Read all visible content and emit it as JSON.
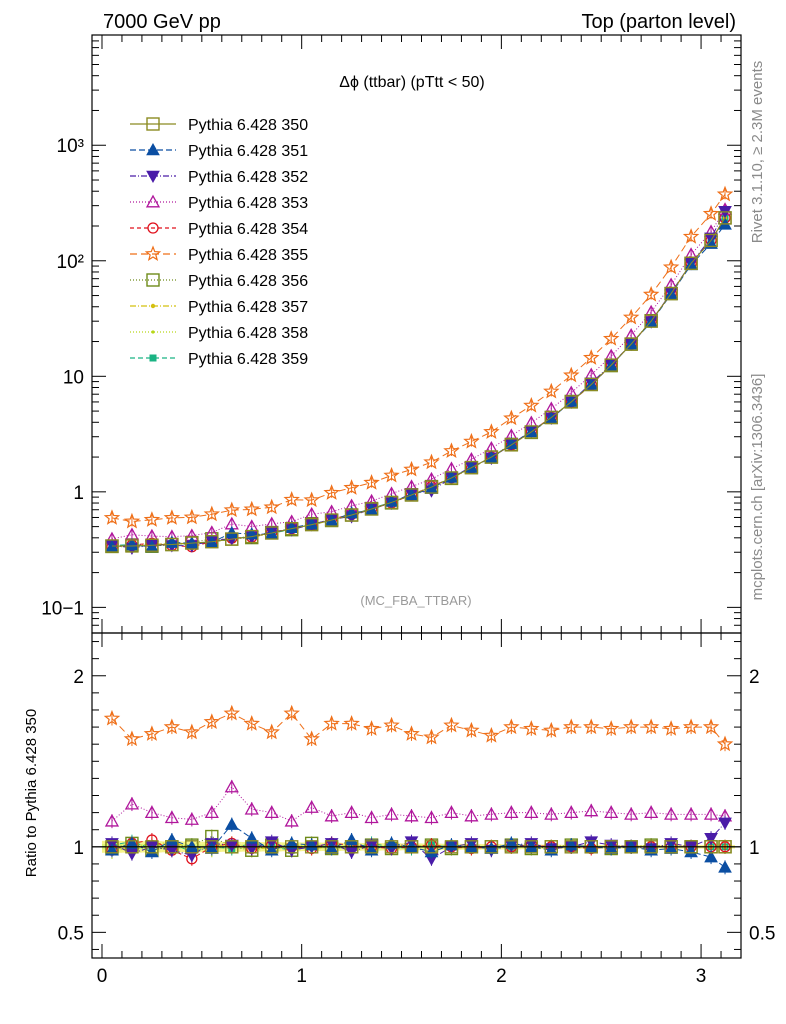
{
  "header": {
    "left": "7000 GeV pp",
    "right": "Top (parton level)"
  },
  "side_labels": {
    "rivet": "Rivet 3.1.10, ≥ 2.3M events",
    "mcplots": "mcplots.cern.ch [arXiv:1306.3436]"
  },
  "chart_data": {
    "type": "line",
    "title": "Δϕ (ttbar) (pTtt < 50)",
    "watermark": "(MC_FBA_TTBAR)",
    "main_panel": {
      "yscale": "log",
      "ylim": [
        0.06,
        9000
      ],
      "y_tick_labels": [
        "10−1",
        "1",
        "10",
        "10²",
        "10³"
      ]
    },
    "ratio_panel": {
      "ylabel": "Ratio to Pythia 6.428 350",
      "ylim": [
        0.35,
        2.25
      ],
      "y_tick_labels": [
        "0.5",
        "1",
        "2"
      ]
    },
    "xlim": [
      -0.05,
      3.2
    ],
    "x_tick_labels": [
      "0",
      "1",
      "2",
      "3"
    ],
    "x": [
      0.05,
      0.15,
      0.25,
      0.35,
      0.45,
      0.55,
      0.65,
      0.75,
      0.85,
      0.95,
      1.05,
      1.15,
      1.25,
      1.35,
      1.45,
      1.55,
      1.65,
      1.75,
      1.85,
      1.95,
      2.05,
      2.15,
      2.25,
      2.35,
      2.45,
      2.55,
      2.65,
      2.75,
      2.85,
      2.95,
      3.05,
      3.12
    ],
    "reference": [
      0.34,
      0.34,
      0.345,
      0.35,
      0.36,
      0.37,
      0.39,
      0.41,
      0.44,
      0.48,
      0.52,
      0.57,
      0.63,
      0.71,
      0.81,
      0.94,
      1.1,
      1.32,
      1.62,
      2.0,
      2.55,
      3.3,
      4.4,
      6.0,
      8.5,
      12.5,
      19,
      30,
      52,
      95,
      150,
      235
    ],
    "series": [
      {
        "name": "Pythia 6.428 350",
        "color": "#8b8b22",
        "marker": "square-open",
        "dash": "solid",
        "ratio": [
          1,
          1,
          1,
          1,
          1,
          1,
          1,
          1,
          1,
          1,
          1,
          1,
          1,
          1,
          1,
          1,
          1,
          1,
          1,
          1,
          1,
          1,
          1,
          1,
          1,
          1,
          1,
          1,
          1,
          1,
          1,
          1
        ]
      },
      {
        "name": "Pythia 6.428 351",
        "color": "#0b4ea2",
        "marker": "triangle-up",
        "dash": "6,3",
        "ratio": [
          0.98,
          1.02,
          0.97,
          1.04,
          1.0,
          0.99,
          1.13,
          1.05,
          0.98,
          1.02,
          1.01,
          0.99,
          1.04,
          0.98,
          1.02,
          1.0,
          0.97,
          1.01,
          1.0,
          0.99,
          1.02,
          1.0,
          0.98,
          1.01,
          1.0,
          0.99,
          1.0,
          0.98,
          0.99,
          0.97,
          0.94,
          0.88
        ]
      },
      {
        "name": "Pythia 6.428 352",
        "color": "#4a1ca8",
        "marker": "triangle-down",
        "dash": "6,2,1,2",
        "ratio": [
          1.02,
          0.96,
          1.0,
          0.98,
          0.95,
          1.02,
          1.01,
          0.99,
          1.03,
          0.98,
          1.0,
          1.02,
          0.97,
          1.01,
          0.99,
          1.03,
          0.93,
          1.0,
          1.02,
          0.98,
          1.01,
          1.02,
          0.99,
          1.0,
          1.03,
          1.01,
          1.0,
          0.99,
          1.02,
          1.0,
          1.05,
          1.14
        ]
      },
      {
        "name": "Pythia 6.428 353",
        "color": "#b0179c",
        "marker": "triangle-up-open",
        "dash": "1,2",
        "ratio": [
          1.15,
          1.25,
          1.2,
          1.17,
          1.16,
          1.2,
          1.35,
          1.22,
          1.2,
          1.15,
          1.23,
          1.18,
          1.2,
          1.17,
          1.19,
          1.18,
          1.17,
          1.2,
          1.18,
          1.19,
          1.2,
          1.2,
          1.19,
          1.2,
          1.21,
          1.2,
          1.19,
          1.2,
          1.19,
          1.19,
          1.19,
          1.18
        ]
      },
      {
        "name": "Pythia 6.428 354",
        "color": "#e0101c",
        "marker": "circle-open",
        "dash": "4,3",
        "ratio": [
          0.98,
          1.02,
          1.04,
          0.98,
          0.93,
          1.0,
          1.02,
          0.99,
          1.01,
          1.0,
          0.99,
          1.02,
          1.01,
          1.0,
          0.99,
          1.0,
          1.01,
          1.0,
          0.99,
          1.0,
          1.0,
          1.01,
          1.0,
          1.0,
          0.99,
          1.0,
          1.0,
          1.0,
          1.0,
          1.0,
          1.0,
          1.0
        ]
      },
      {
        "name": "Pythia 6.428 355",
        "color": "#ef6f18",
        "marker": "star-open",
        "dash": "7,4",
        "ratio": [
          1.75,
          1.63,
          1.66,
          1.7,
          1.67,
          1.73,
          1.78,
          1.72,
          1.67,
          1.78,
          1.63,
          1.72,
          1.72,
          1.69,
          1.71,
          1.66,
          1.64,
          1.71,
          1.68,
          1.65,
          1.7,
          1.69,
          1.68,
          1.7,
          1.7,
          1.69,
          1.7,
          1.7,
          1.69,
          1.7,
          1.7,
          1.6
        ]
      },
      {
        "name": "Pythia 6.428 356",
        "color": "#6e8b1a",
        "marker": "square-open",
        "dash": "1,2",
        "ratio": [
          0.99,
          1.02,
          0.98,
          1.0,
          1.01,
          1.06,
          1.0,
          0.98,
          1.01,
          0.98,
          1.02,
          0.99,
          1.0,
          1.01,
          0.99,
          1.0,
          1.01,
          0.99,
          1.0,
          1.0,
          1.01,
          0.99,
          1.0,
          1.01,
          1.0,
          0.99,
          1.0,
          1.01,
          1.0,
          1.0,
          1.0,
          1.0
        ]
      },
      {
        "name": "Pythia 6.428 357",
        "color": "#d4c00f",
        "marker": "dot-small",
        "dash": "6,2,1,2",
        "ratio": [
          1.0,
          0.98,
          1.01,
          1.03,
          0.99,
          1.0,
          1.02,
          0.98,
          1.0,
          1.01,
          0.99,
          1.0,
          1.0,
          0.99,
          1.01,
          1.0,
          1.0,
          0.99,
          1.0,
          1.0,
          1.0,
          1.0,
          1.0,
          1.0,
          1.0,
          1.0,
          1.0,
          1.0,
          1.0,
          1.0,
          1.0,
          1.0
        ]
      },
      {
        "name": "Pythia 6.428 358",
        "color": "#b7d618",
        "marker": "dot-tiny",
        "dash": "1,2",
        "ratio": [
          0.97,
          1.0,
          1.02,
          0.99,
          1.0,
          0.98,
          1.01,
          1.0,
          0.99,
          1.0,
          1.01,
          1.0,
          0.99,
          1.0,
          1.0,
          1.01,
          1.0,
          1.0,
          0.99,
          1.0,
          1.0,
          1.0,
          1.0,
          1.0,
          1.0,
          1.0,
          1.0,
          1.0,
          1.0,
          1.0,
          1.0,
          1.0
        ]
      },
      {
        "name": "Pythia 6.428 359",
        "color": "#1ab383",
        "marker": "square-small",
        "dash": "5,3",
        "ratio": [
          1.01,
          1.03,
          0.99,
          1.02,
          0.97,
          1.0,
          0.99,
          1.02,
          1.0,
          0.98,
          1.01,
          1.0,
          0.99,
          1.02,
          1.0,
          0.99,
          1.01,
          1.0,
          1.0,
          0.99,
          1.0,
          1.01,
          1.0,
          1.0,
          1.0,
          1.0,
          1.0,
          1.0,
          1.0,
          1.0,
          1.0,
          1.0
        ]
      }
    ]
  }
}
